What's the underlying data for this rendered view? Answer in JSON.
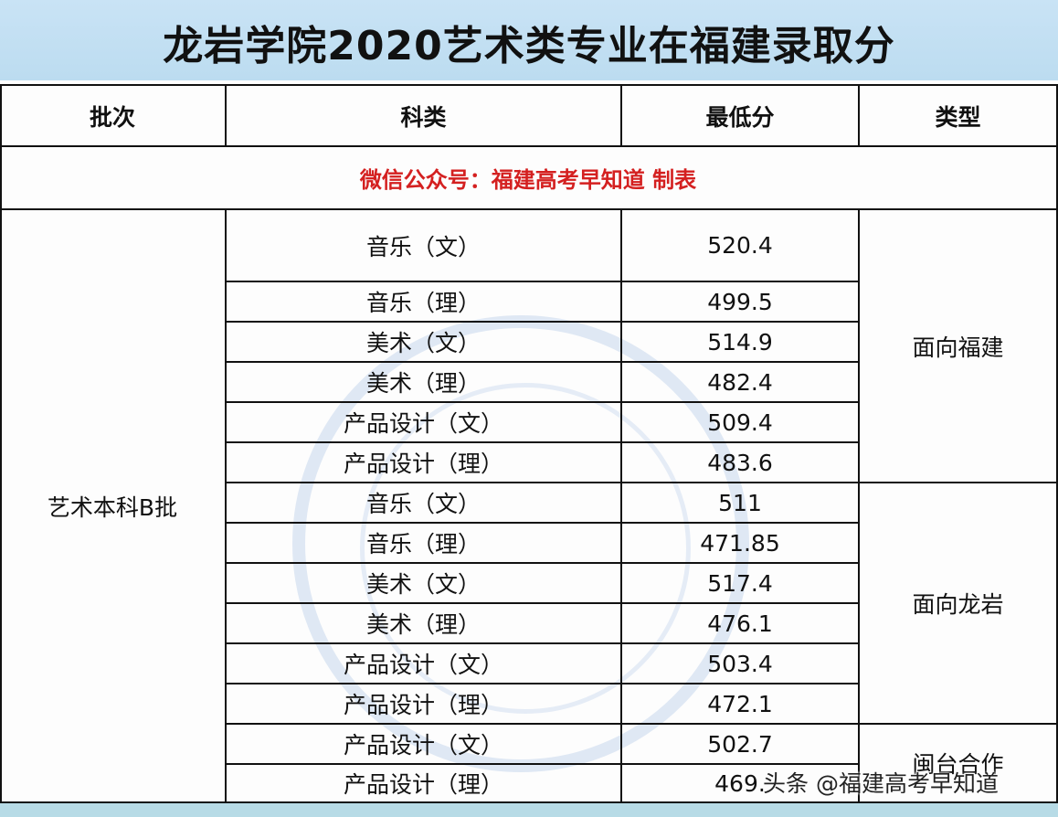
{
  "title": "龙岩学院2020艺术类专业在福建录取分",
  "headers": [
    "批次",
    "科类",
    "最低分",
    "类型"
  ],
  "note": "微信公众号：福建高考早知道  制表",
  "batch": "艺术本科B批",
  "rows": [
    {
      "subject": "音乐（文）",
      "score": "520.4"
    },
    {
      "subject": "音乐（理）",
      "score": "499.5"
    },
    {
      "subject": "美术（文）",
      "score": "514.9"
    },
    {
      "subject": "美术（理）",
      "score": "482.4"
    },
    {
      "subject": "产品设计（文）",
      "score": "509.4"
    },
    {
      "subject": "产品设计（理）",
      "score": "483.6"
    },
    {
      "subject": "音乐（文）",
      "score": "511"
    },
    {
      "subject": "音乐（理）",
      "score": "471.85"
    },
    {
      "subject": "美术（文）",
      "score": "517.4"
    },
    {
      "subject": "美术（理）",
      "score": "476.1"
    },
    {
      "subject": "产品设计（文）",
      "score": "503.4"
    },
    {
      "subject": "产品设计（理）",
      "score": "472.1"
    },
    {
      "subject": "产品设计（文）",
      "score": "502.7"
    },
    {
      "subject": "产品设计（理）",
      "score": "469."
    }
  ],
  "types": [
    {
      "label": "面向福建",
      "span": 6
    },
    {
      "label": "面向龙岩",
      "span": 6
    },
    {
      "label": "闽台合作",
      "span": 2
    }
  ],
  "watermark": "头条 @福建高考早知道",
  "seal_text": "福建高考早知道",
  "colors": {
    "title_band": "#c5e0f3",
    "note_red": "#d42020",
    "bottom_band": "#b7dbe6"
  }
}
